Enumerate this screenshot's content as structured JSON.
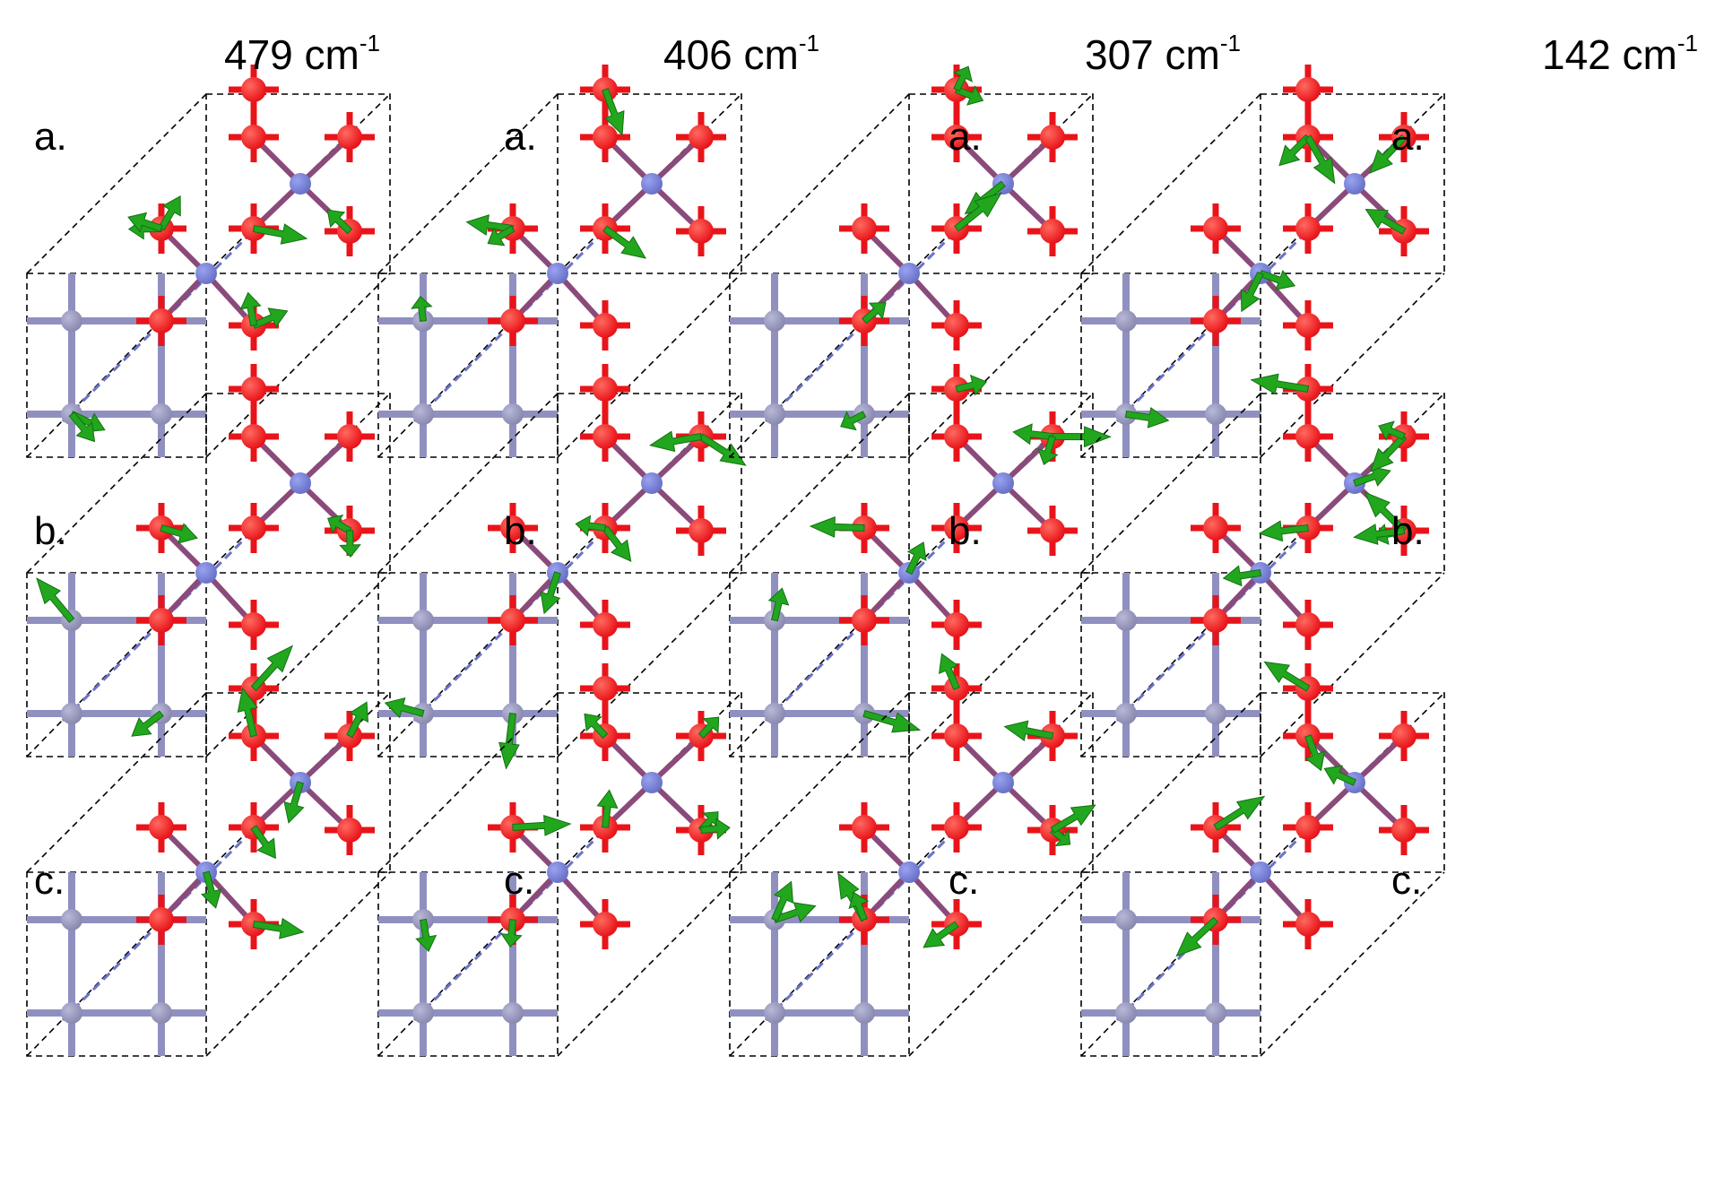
{
  "columns": [
    {
      "freq_value": "479",
      "freq_unit": "cm",
      "freq_exp": "-1"
    },
    {
      "freq_value": "406",
      "freq_unit": "cm",
      "freq_exp": "-1"
    },
    {
      "freq_value": "307",
      "freq_unit": "cm",
      "freq_exp": "-1"
    },
    {
      "freq_value": "142",
      "freq_unit": "cm",
      "freq_exp": "-1"
    }
  ],
  "rows": [
    {
      "label": "a."
    },
    {
      "label": "b."
    },
    {
      "label": "c."
    }
  ],
  "colors": {
    "oxygen": "#e8141a",
    "metal_center": "#6a72c8",
    "lattice_atom": "#8a8ab0",
    "lattice_bond": "#9090c0",
    "arrow": "#22a61e",
    "cell_line": "#000000"
  }
}
